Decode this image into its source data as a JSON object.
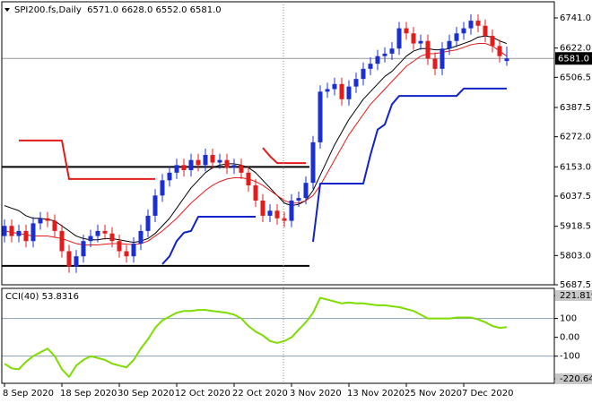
{
  "chart_data": [
    {
      "type": "candlestick",
      "title": "SPI200.fs,Daily  6571.0 6628.0 6552.0 6581.0",
      "open": [
        5880,
        5920,
        5880,
        5900,
        5860,
        5930,
        5950,
        5940,
        5900,
        5820,
        5760,
        5800,
        5860,
        5880,
        5900,
        5890,
        5860,
        5820,
        5800,
        5850,
        5900,
        5960,
        6040,
        6100,
        6130,
        6160,
        6140,
        6180,
        6160,
        6200,
        6170,
        6180,
        6150,
        6160,
        6130,
        6080,
        6020,
        5960,
        5980,
        5950,
        5940,
        6020,
        6030,
        6090,
        6250,
        6450,
        6460,
        6480,
        6420,
        6470,
        6500,
        6540,
        6560,
        6590,
        6600,
        6620,
        6700,
        6680,
        6640,
        6650,
        6580,
        6540,
        6620,
        6650,
        6680,
        6700,
        6730,
        6710,
        6670,
        6630,
        6571
      ],
      "high": [
        5945,
        5945,
        5925,
        5925,
        5955,
        5975,
        5975,
        5965,
        5925,
        5845,
        5825,
        5885,
        5905,
        5925,
        5925,
        5915,
        5885,
        5845,
        5875,
        5925,
        5985,
        6065,
        6125,
        6155,
        6185,
        6185,
        6205,
        6205,
        6225,
        6225,
        6205,
        6205,
        6185,
        6185,
        6155,
        6105,
        6045,
        6005,
        6005,
        5975,
        6045,
        6055,
        6115,
        6275,
        6475,
        6485,
        6505,
        6505,
        6495,
        6525,
        6565,
        6585,
        6615,
        6625,
        6645,
        6725,
        6725,
        6705,
        6675,
        6675,
        6605,
        6645,
        6675,
        6705,
        6725,
        6755,
        6755,
        6735,
        6695,
        6655,
        6628
      ],
      "low": [
        5855,
        5855,
        5855,
        5835,
        5835,
        5905,
        5915,
        5875,
        5795,
        5735,
        5735,
        5775,
        5835,
        5855,
        5865,
        5835,
        5795,
        5775,
        5775,
        5825,
        5875,
        5935,
        6015,
        6075,
        6105,
        6115,
        6115,
        6135,
        6135,
        6145,
        6145,
        6125,
        6125,
        6105,
        6055,
        5995,
        5935,
        5935,
        5925,
        5915,
        5915,
        5995,
        6005,
        6065,
        6225,
        6425,
        6435,
        6395,
        6395,
        6445,
        6475,
        6515,
        6535,
        6565,
        6575,
        6595,
        6655,
        6615,
        6615,
        6555,
        6515,
        6515,
        6595,
        6625,
        6655,
        6675,
        6685,
        6645,
        6605,
        6565,
        6552
      ],
      "close": [
        5920,
        5880,
        5900,
        5860,
        5930,
        5950,
        5940,
        5900,
        5820,
        5760,
        5800,
        5860,
        5880,
        5900,
        5890,
        5860,
        5820,
        5800,
        5850,
        5900,
        5960,
        6040,
        6100,
        6130,
        6160,
        6140,
        6180,
        6160,
        6200,
        6170,
        6180,
        6150,
        6160,
        6130,
        6080,
        6020,
        5960,
        5980,
        5950,
        5940,
        6020,
        6030,
        6090,
        6250,
        6450,
        6460,
        6480,
        6420,
        6470,
        6500,
        6540,
        6560,
        6590,
        6600,
        6620,
        6700,
        6680,
        6640,
        6650,
        6580,
        6540,
        6620,
        6650,
        6680,
        6700,
        6730,
        6710,
        6670,
        6630,
        6590,
        6581
      ],
      "up_color": "#1a2fd0",
      "down_color": "#e41b1b",
      "lines": [
        {
          "color": "#000000",
          "width": 1,
          "values": [
            6000,
            5990,
            5980,
            5960,
            5950,
            5950,
            5945,
            5940,
            5920,
            5900,
            5880,
            5870,
            5865,
            5865,
            5870,
            5870,
            5865,
            5860,
            5855,
            5860,
            5870,
            5890,
            5920,
            5950,
            5990,
            6030,
            6070,
            6100,
            6130,
            6150,
            6160,
            6165,
            6165,
            6160,
            6150,
            6130,
            6100,
            6070,
            6040,
            6010,
            6000,
            6005,
            6020,
            6060,
            6120,
            6180,
            6240,
            6290,
            6340,
            6380,
            6420,
            6450,
            6480,
            6510,
            6530,
            6560,
            6590,
            6610,
            6620,
            6620,
            6615,
            6615,
            6620,
            6630,
            6640,
            6650,
            6665,
            6670,
            6665,
            6650,
            6640
          ]
        },
        {
          "color": "#e41b1b",
          "width": 1,
          "values": [
            5900,
            5895,
            5890,
            5885,
            5880,
            5880,
            5880,
            5875,
            5870,
            5860,
            5850,
            5845,
            5845,
            5845,
            5848,
            5850,
            5850,
            5848,
            5846,
            5850,
            5860,
            5880,
            5900,
            5925,
            5950,
            5980,
            6010,
            6035,
            6060,
            6080,
            6095,
            6105,
            6110,
            6110,
            6105,
            6095,
            6080,
            6060,
            6040,
            6020,
            6010,
            6010,
            6020,
            6040,
            6080,
            6130,
            6180,
            6230,
            6280,
            6320,
            6360,
            6400,
            6430,
            6460,
            6490,
            6520,
            6550,
            6570,
            6590,
            6600,
            6600,
            6605,
            6610,
            6615,
            6625,
            6635,
            6640,
            6640,
            6630,
            6610,
            6590
          ]
        },
        {
          "color": "#e41b1b",
          "width": 2,
          "values": [
            null,
            null,
            6257,
            6257,
            6257,
            6257,
            6257,
            6257,
            6257,
            6105,
            6105,
            6105,
            6105,
            6105,
            6105,
            6105,
            6105,
            6105,
            6105,
            6105,
            6105,
            6105,
            null,
            null,
            null,
            null,
            null,
            null,
            null,
            null,
            null,
            null,
            null,
            null,
            null,
            null,
            6228,
            6195,
            6168,
            6168,
            6168,
            6168,
            6168,
            null,
            null,
            null,
            null,
            null,
            null,
            null,
            null,
            null,
            null,
            null,
            null,
            null,
            null,
            null,
            null,
            null,
            null,
            null,
            null,
            null,
            null,
            null,
            null,
            null,
            null,
            null,
            null
          ]
        },
        {
          "color": "#1022c8",
          "width": 2,
          "values": [
            null,
            null,
            null,
            null,
            null,
            null,
            null,
            null,
            null,
            null,
            null,
            null,
            null,
            null,
            null,
            null,
            null,
            null,
            null,
            null,
            null,
            null,
            5769,
            5800,
            5860,
            5893,
            5900,
            5956,
            5956,
            5956,
            5956,
            5956,
            5956,
            5956,
            5956,
            5956,
            null,
            null,
            null,
            null,
            null,
            null,
            null,
            5857,
            6087,
            6087,
            6087,
            6087,
            6087,
            6087,
            6087,
            6200,
            6300,
            6320,
            6400,
            6433,
            6433,
            6433,
            6433,
            6433,
            6433,
            6433,
            6433,
            6433,
            6462,
            6462,
            6462,
            6462,
            6462,
            6462,
            6462
          ]
        }
      ],
      "levels": [
        {
          "value": 6153,
          "xlim": [
            -0.375,
            42.5
          ],
          "color": "#000000"
        },
        {
          "value": 5762,
          "xlim": [
            -0.375,
            42.5
          ],
          "color": "#000000"
        }
      ],
      "last": {
        "value": 6581,
        "label": "6581.0"
      },
      "xlim": [
        -0.375,
        76.625
      ],
      "xticks": [
        {
          "value": 0,
          "label": "8 Sep 2020"
        },
        {
          "value": 8,
          "label": "18 Sep 2020"
        },
        {
          "value": 16,
          "label": "30 Sep 2020"
        },
        {
          "value": 24,
          "label": "12 Oct 2020"
        },
        {
          "value": 32,
          "label": "22 Oct 2020"
        },
        {
          "value": 40,
          "label": "3 Nov 2020"
        },
        {
          "value": 48,
          "label": "13 Nov 2020"
        },
        {
          "value": 56,
          "label": "25 Nov 2020"
        },
        {
          "value": 64,
          "label": "7 Dec 2020"
        }
      ],
      "ylim": [
        5687.5,
        6804.6
      ],
      "yticks": [
        {
          "value": 6741,
          "label": "6741.0"
        },
        {
          "value": 6622,
          "label": "6622.0"
        },
        {
          "value": 6506.5,
          "label": "6506.5"
        },
        {
          "value": 6387.5,
          "label": "6387.5"
        },
        {
          "value": 6272,
          "label": "6272.0"
        },
        {
          "value": 6153,
          "label": "6153.0"
        },
        {
          "value": 6037.5,
          "label": "6037.5"
        },
        {
          "value": 5918.5,
          "label": "5918.5"
        },
        {
          "value": 5803,
          "label": "5803.0"
        },
        {
          "value": 5687.5,
          "label": "5687.5"
        }
      ]
    },
    {
      "type": "line",
      "title": "CCI(40) 53.8316",
      "color": "#7ddc00",
      "values": [
        -140,
        -165,
        -170,
        -130,
        -100,
        -80,
        -60,
        -100,
        -170,
        -210,
        -150,
        -120,
        -100,
        -110,
        -120,
        -140,
        -150,
        -160,
        -120,
        -60,
        -10,
        50,
        90,
        110,
        130,
        140,
        140,
        145,
        145,
        140,
        135,
        130,
        120,
        100,
        60,
        30,
        10,
        -20,
        -30,
        -20,
        0,
        40,
        80,
        130,
        210,
        200,
        190,
        180,
        185,
        180,
        180,
        175,
        170,
        170,
        165,
        160,
        150,
        140,
        120,
        100,
        100,
        100,
        100,
        105,
        105,
        105,
        95,
        80,
        60,
        50,
        53.8316
      ],
      "levels": [
        100,
        -100
      ],
      "ylim": [
        -244.4,
        259.9
      ],
      "yticks": [
        221.8193,
        100,
        {
          "value": 0,
          "label": "0.00"
        },
        -100,
        {
          "value": -220.64,
          "label": "-220.640"
        }
      ]
    }
  ]
}
